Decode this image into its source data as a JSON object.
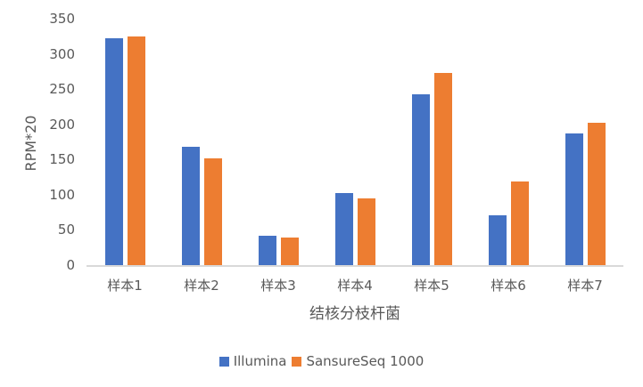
{
  "chart_data": {
    "type": "bar",
    "title": "",
    "xlabel": "结核分枝杆菌",
    "ylabel": "RPM*20",
    "ylim": [
      0,
      350
    ],
    "yticks": [
      0,
      50,
      100,
      150,
      200,
      250,
      300,
      350
    ],
    "grid": false,
    "legend_position": "bottom",
    "categories": [
      "样本1",
      "样本2",
      "样本3",
      "样本4",
      "样本5",
      "样本6",
      "样本7"
    ],
    "series": [
      {
        "name": "Illumina",
        "color": "#4472C4",
        "values": [
          323,
          169,
          43,
          104,
          244,
          72,
          188
        ]
      },
      {
        "name": "SansureSeq 1000",
        "color": "#ED7D31",
        "values": [
          326,
          153,
          40,
          96,
          274,
          120,
          203
        ]
      }
    ]
  },
  "colors": {
    "axis_line": "#d9d9d9",
    "text": "#595959"
  }
}
